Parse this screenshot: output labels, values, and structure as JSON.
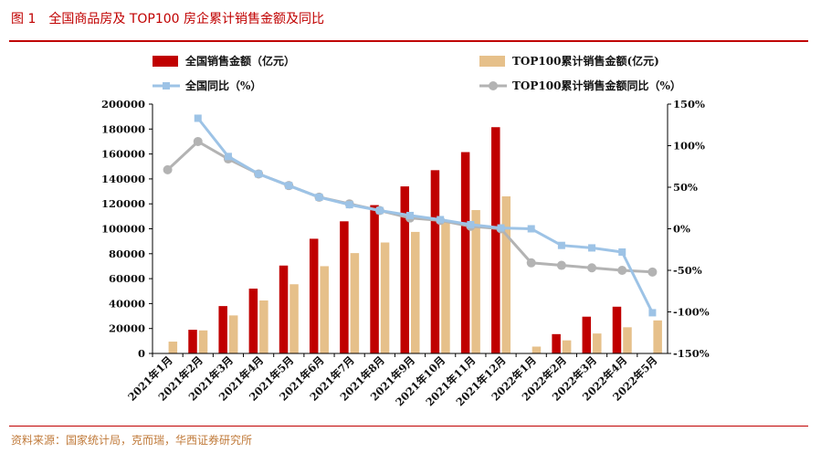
{
  "header": {
    "figure_number": "图 1",
    "title": "全国商品房及 TOP100 房企累计销售金额及同比"
  },
  "source": "资料来源：国家统计局，克而瑞，华西证券研究所",
  "colors": {
    "national_sales": "#c00000",
    "top100_sales": "#e6c08a",
    "national_yoy": "#9dc3e6",
    "top100_yoy": "#b3b3b3",
    "rule": "#c00000"
  },
  "chart_data": {
    "type": "bar",
    "categories": [
      "2021年1月",
      "2021年2月",
      "2021年3月",
      "2021年4月",
      "2021年5月",
      "2021年6月",
      "2021年7月",
      "2021年8月",
      "2021年9月",
      "2021年10月",
      "2021年11月",
      "2021年12月",
      "2022年1月",
      "2022年2月",
      "2022年3月",
      "2022年4月",
      "2022年5月"
    ],
    "series": [
      {
        "name": "全国销售金额（亿元）",
        "kind": "bar",
        "axis": "left",
        "values": [
          null,
          19000,
          38000,
          52000,
          70500,
          92000,
          106000,
          119000,
          134000,
          147000,
          161500,
          181500,
          null,
          15500,
          29500,
          37500,
          null
        ]
      },
      {
        "name": "TOP100累计销售金额(亿元)",
        "kind": "bar",
        "axis": "left",
        "values": [
          9500,
          18500,
          30500,
          42500,
          55500,
          70000,
          80500,
          89000,
          97500,
          107000,
          115000,
          126000,
          5500,
          10500,
          16000,
          21000,
          26500
        ]
      },
      {
        "name": "全国同比（%）",
        "kind": "line",
        "axis": "right",
        "marker": "square",
        "values": [
          null,
          133,
          87,
          66,
          52,
          38,
          29,
          22,
          16,
          11,
          5,
          1,
          0,
          -20,
          -23,
          -28,
          -101
        ]
      },
      {
        "name": "TOP100累计销售金额同比（%）",
        "kind": "line",
        "axis": "right",
        "marker": "circle",
        "values": [
          71,
          105,
          84,
          66,
          52,
          38,
          30,
          22,
          13,
          10,
          3,
          0,
          -41,
          -44,
          -47,
          -50,
          -52
        ]
      }
    ],
    "left_axis": {
      "min": 0,
      "max": 200000,
      "ticks": [
        "0",
        "20000",
        "40000",
        "60000",
        "80000",
        "100000",
        "120000",
        "140000",
        "160000",
        "180000",
        "200000"
      ]
    },
    "right_axis": {
      "min": -150,
      "max": 150,
      "ticks": [
        "-150%",
        "-100%",
        "-50%",
        "0%",
        "50%",
        "100%",
        "150%"
      ]
    },
    "legend_position": "top",
    "grid": false
  }
}
